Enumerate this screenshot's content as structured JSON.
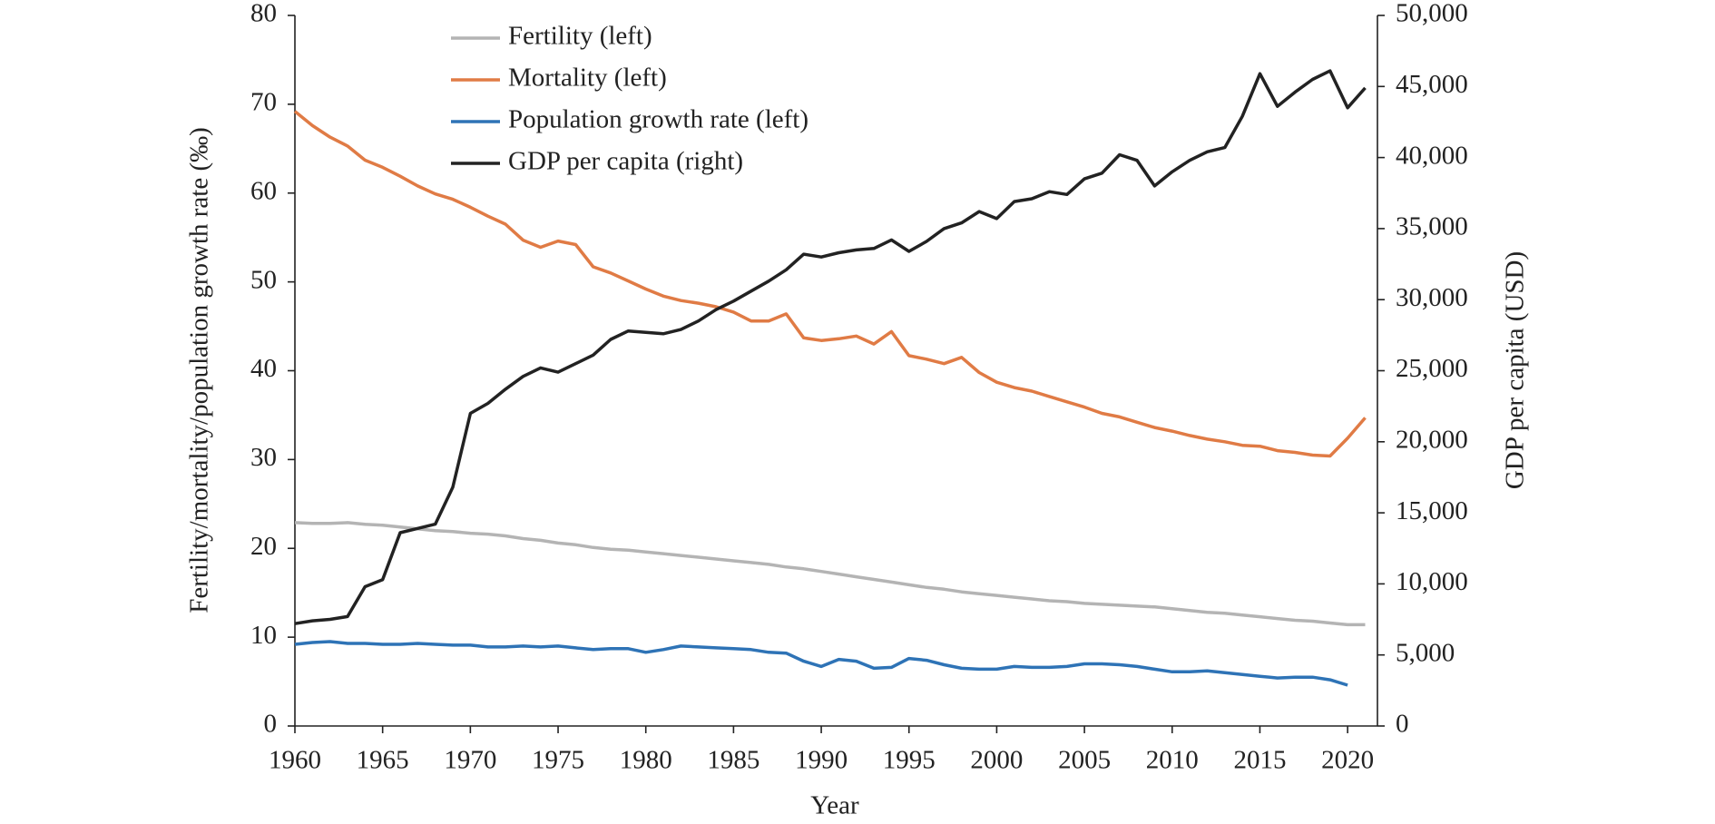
{
  "chart_data": {
    "type": "line",
    "x_label": "Year",
    "y_label": "Fertility/mortality/population growth rate (‰)",
    "y2_label": "GDP per capita (USD)",
    "x": [
      1960,
      1961,
      1962,
      1963,
      1964,
      1965,
      1966,
      1967,
      1968,
      1969,
      1970,
      1971,
      1972,
      1973,
      1974,
      1975,
      1976,
      1977,
      1978,
      1979,
      1980,
      1981,
      1982,
      1983,
      1984,
      1985,
      1986,
      1987,
      1988,
      1989,
      1990,
      1991,
      1992,
      1993,
      1994,
      1995,
      1996,
      1997,
      1998,
      1999,
      2000,
      2001,
      2002,
      2003,
      2004,
      2005,
      2006,
      2007,
      2008,
      2009,
      2010,
      2011,
      2012,
      2013,
      2014,
      2015,
      2016,
      2017,
      2018,
      2019,
      2020,
      2021
    ],
    "xlim": [
      1960,
      2021.7
    ],
    "xticks": [
      1960,
      1965,
      1970,
      1975,
      1980,
      1985,
      1990,
      1995,
      2000,
      2005,
      2010,
      2015,
      2020
    ],
    "ylim": [
      0,
      80
    ],
    "yticks": [
      0,
      10,
      20,
      30,
      40,
      50,
      60,
      70,
      80
    ],
    "y2lim": [
      0,
      50000
    ],
    "y2ticks": [
      0,
      {
        "value": 5000,
        "label": "5,000"
      },
      {
        "value": 10000,
        "label": "10,000"
      },
      {
        "value": 15000,
        "label": "15,000"
      },
      {
        "value": 20000,
        "label": "20,000"
      },
      {
        "value": 25000,
        "label": "25,000"
      },
      {
        "value": 30000,
        "label": "30,000"
      },
      {
        "value": 35000,
        "label": "35,000"
      },
      {
        "value": 40000,
        "label": "40,000"
      },
      {
        "value": 45000,
        "label": "45,000"
      },
      {
        "value": 50000,
        "label": "50,000"
      }
    ],
    "legend": "upper left",
    "series": [
      {
        "name": "Fertility (left)",
        "color": "#b4b4b4",
        "values": [
          22.9,
          22.8,
          22.8,
          22.9,
          22.7,
          22.6,
          22.4,
          22.2,
          22.0,
          21.9,
          21.7,
          21.6,
          21.4,
          21.1,
          20.9,
          20.6,
          20.4,
          20.1,
          19.9,
          19.8,
          19.6,
          19.4,
          19.2,
          19.0,
          18.8,
          18.6,
          18.4,
          18.2,
          17.9,
          17.7,
          17.4,
          17.1,
          16.8,
          16.5,
          16.2,
          15.9,
          15.6,
          15.4,
          15.1,
          14.9,
          14.7,
          14.5,
          14.3,
          14.1,
          14.0,
          13.8,
          13.7,
          13.6,
          13.5,
          13.4,
          13.2,
          13.0,
          12.8,
          12.7,
          12.5,
          12.3,
          12.1,
          11.9,
          11.8,
          11.6,
          11.4,
          11.4
        ]
      },
      {
        "name": "Mortality (left)",
        "color": "#e07b45",
        "values": [
          69.2,
          67.6,
          66.3,
          65.3,
          63.7,
          62.9,
          61.9,
          60.8,
          59.9,
          59.3,
          58.4,
          57.4,
          56.5,
          54.7,
          53.9,
          54.6,
          54.2,
          51.7,
          51.0,
          50.1,
          49.2,
          48.4,
          47.9,
          47.6,
          47.2,
          46.6,
          45.6,
          45.6,
          46.4,
          43.7,
          43.4,
          43.6,
          43.9,
          43.0,
          44.4,
          41.7,
          41.3,
          40.8,
          41.5,
          39.8,
          38.7,
          38.1,
          37.7,
          37.1,
          36.5,
          35.9,
          35.2,
          34.8,
          34.2,
          33.6,
          33.2,
          32.7,
          32.3,
          32.0,
          31.6,
          31.5,
          31.0,
          30.8,
          30.5,
          30.4,
          32.4,
          34.7
        ]
      },
      {
        "name": "Population growth rate (left)",
        "color": "#2e73b6",
        "values": [
          9.2,
          9.4,
          9.5,
          9.3,
          9.3,
          9.2,
          9.2,
          9.3,
          9.2,
          9.1,
          9.1,
          8.9,
          8.9,
          9.0,
          8.9,
          9.0,
          8.8,
          8.6,
          8.7,
          8.7,
          8.3,
          8.6,
          9.0,
          8.9,
          8.8,
          8.7,
          8.6,
          8.3,
          8.2,
          7.3,
          6.7,
          7.5,
          7.3,
          6.5,
          6.6,
          7.6,
          7.4,
          6.9,
          6.5,
          6.4,
          6.4,
          6.7,
          6.6,
          6.6,
          6.7,
          7.0,
          7.0,
          6.9,
          6.7,
          6.4,
          6.1,
          6.1,
          6.2,
          6.0,
          5.8,
          5.6,
          5.4,
          5.5,
          5.5,
          5.2,
          4.6,
          null
        ]
      },
      {
        "name": "GDP per capita (right)",
        "color": "#222222",
        "axis": "y2",
        "values": [
          7200,
          7400,
          7500,
          7700,
          9800,
          10300,
          13600,
          13900,
          14200,
          16800,
          22000,
          22700,
          23700,
          24600,
          25200,
          24900,
          25500,
          26100,
          27200,
          27800,
          27700,
          27600,
          27900,
          28500,
          29300,
          29900,
          30600,
          31300,
          32100,
          33200,
          33000,
          33300,
          33500,
          33600,
          34200,
          33400,
          34100,
          35000,
          35400,
          36200,
          35700,
          36900,
          37100,
          37600,
          37400,
          38500,
          38900,
          40200,
          39800,
          38000,
          39000,
          39800,
          40400,
          40700,
          42900,
          45900,
          43600,
          44600,
          45500,
          46100,
          43500,
          44900
        ]
      }
    ]
  }
}
